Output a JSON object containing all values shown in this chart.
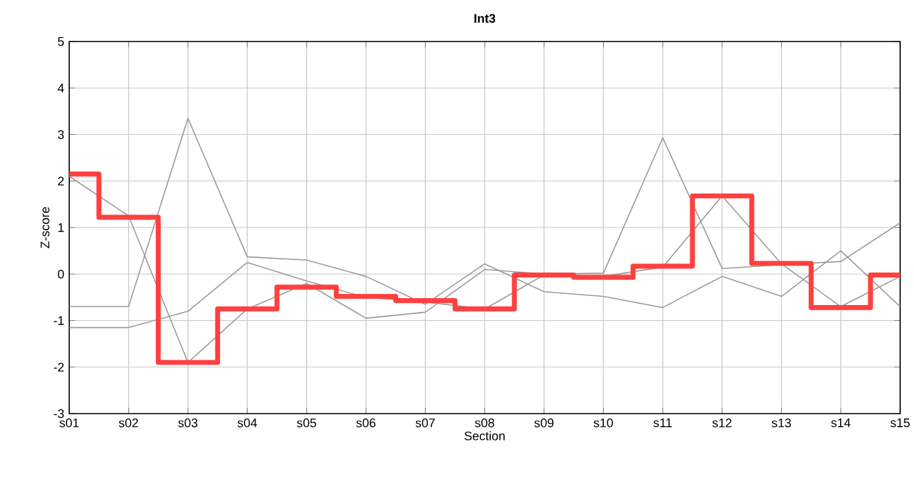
{
  "chart_data": {
    "type": "line",
    "title": "Int3",
    "xlabel": "Section",
    "ylabel": "Z-score",
    "categories": [
      "s01",
      "s02",
      "s03",
      "s04",
      "s05",
      "s06",
      "s07",
      "s08",
      "s09",
      "s10",
      "s11",
      "s12",
      "s13",
      "s14",
      "s15"
    ],
    "ylim": [
      -3,
      5
    ],
    "yticks": [
      -3,
      -2,
      -1,
      0,
      1,
      2,
      3,
      4,
      5
    ],
    "grid": true,
    "series": [
      {
        "color": "#999999",
        "values": [
          -0.7,
          -0.7,
          3.35,
          0.37,
          0.3,
          -0.05,
          -0.65,
          0.22,
          -0.38,
          -0.48,
          -0.72,
          -0.05,
          -0.48,
          0.5,
          -0.7
        ]
      },
      {
        "color": "#999999",
        "values": [
          2.1,
          1.25,
          -1.9,
          -0.75,
          -0.2,
          -0.95,
          -0.82,
          0.1,
          0.0,
          0.02,
          2.93,
          0.12,
          0.2,
          0.27,
          1.1
        ]
      },
      {
        "color": "#999999",
        "values": [
          -1.15,
          -1.15,
          -0.8,
          0.25,
          -0.15,
          -0.5,
          -0.6,
          -0.75,
          -0.02,
          -0.05,
          0.15,
          1.68,
          0.22,
          -0.7,
          -0.05
        ]
      },
      {
        "type": "step",
        "color": "#ff4040",
        "values": [
          2.15,
          1.22,
          -1.9,
          -0.75,
          -0.28,
          -0.48,
          -0.57,
          -0.75,
          -0.02,
          -0.07,
          0.17,
          1.68,
          0.23,
          -0.72,
          -0.02
        ]
      }
    ]
  }
}
